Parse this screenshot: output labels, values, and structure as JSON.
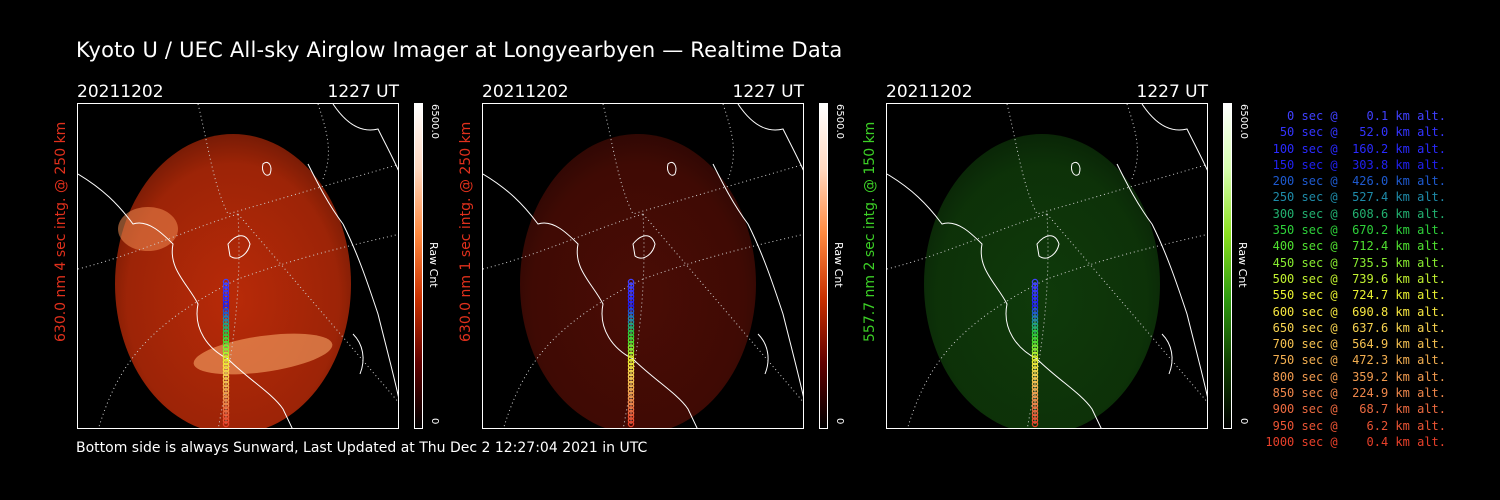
{
  "title": "Kyoto U / UEC All-sky Airglow Imager at Longyearbyen — Realtime Data",
  "panels": [
    {
      "date": "20211202",
      "time": "1227 UT",
      "ylabel": "630.0 nm 4 sec intg. @ 250 km",
      "label_color": "#e0301c",
      "scale_max": "6500.0",
      "scale_min": "0",
      "scale_unit": "Raw Cnt",
      "colormap": [
        "#ffffff",
        "#ffd8c0",
        "#ff8a40",
        "#c83000",
        "#600000",
        "#000000"
      ],
      "glow": "#b82a08"
    },
    {
      "date": "20211202",
      "time": "1227 UT",
      "ylabel": "630.0 nm 1 sec intg. @ 250 km",
      "label_color": "#e0301c",
      "scale_max": "6500.0",
      "scale_min": "0",
      "scale_unit": "Raw Cnt",
      "colormap": [
        "#ffffff",
        "#ffd8c0",
        "#ff8a40",
        "#c83000",
        "#600000",
        "#000000"
      ],
      "glow": "#4a0c05"
    },
    {
      "date": "20211202",
      "time": "1227 UT",
      "ylabel": "557.7 nm 2 sec intg. @ 150 km",
      "label_color": "#3ccf26",
      "scale_max": "6500.0",
      "scale_min": "0",
      "scale_unit": "Raw Cnt",
      "colormap": [
        "#ffffff",
        "#d8ffb0",
        "#8ce020",
        "#2f9a10",
        "#104000",
        "#000000"
      ],
      "glow": "#0f3a0a"
    }
  ],
  "footer": "Bottom side is always Sunward, Last Updated at Thu Dec  2 12:27:04 2021 in UTC",
  "legend": [
    {
      "text": "   0 sec @    0.1 km alt.",
      "color": "#4040ff"
    },
    {
      "text": "  50 sec @   52.0 km alt.",
      "color": "#3434ff"
    },
    {
      "text": " 100 sec @  160.2 km alt.",
      "color": "#2a2aff"
    },
    {
      "text": " 150 sec @  303.8 km alt.",
      "color": "#2020ee"
    },
    {
      "text": " 200 sec @  426.0 km alt.",
      "color": "#1e5ad0"
    },
    {
      "text": " 250 sec @  527.4 km alt.",
      "color": "#1e8aa8"
    },
    {
      "text": " 300 sec @  608.6 km alt.",
      "color": "#22b070"
    },
    {
      "text": " 350 sec @  670.2 km alt.",
      "color": "#2ed03a"
    },
    {
      "text": " 400 sec @  712.4 km alt.",
      "color": "#50e030"
    },
    {
      "text": " 450 sec @  735.5 km alt.",
      "color": "#88ec30"
    },
    {
      "text": " 500 sec @  739.6 km alt.",
      "color": "#c0f030"
    },
    {
      "text": " 550 sec @  724.7 km alt.",
      "color": "#e8f030"
    },
    {
      "text": " 600 sec @  690.8 km alt.",
      "color": "#f6e640"
    },
    {
      "text": " 650 sec @  637.6 km alt.",
      "color": "#f6d250"
    },
    {
      "text": " 700 sec @  564.9 km alt.",
      "color": "#f5c050"
    },
    {
      "text": " 750 sec @  472.3 km alt.",
      "color": "#f2ae50"
    },
    {
      "text": " 800 sec @  359.2 km alt.",
      "color": "#f09a4e"
    },
    {
      "text": " 850 sec @  224.9 km alt.",
      "color": "#ee864a"
    },
    {
      "text": " 900 sec @   68.7 km alt.",
      "color": "#ec6a40"
    },
    {
      "text": " 950 sec @    6.2 km alt.",
      "color": "#ea5434"
    },
    {
      "text": "1000 sec @    0.4 km alt.",
      "color": "#e8402a"
    }
  ]
}
